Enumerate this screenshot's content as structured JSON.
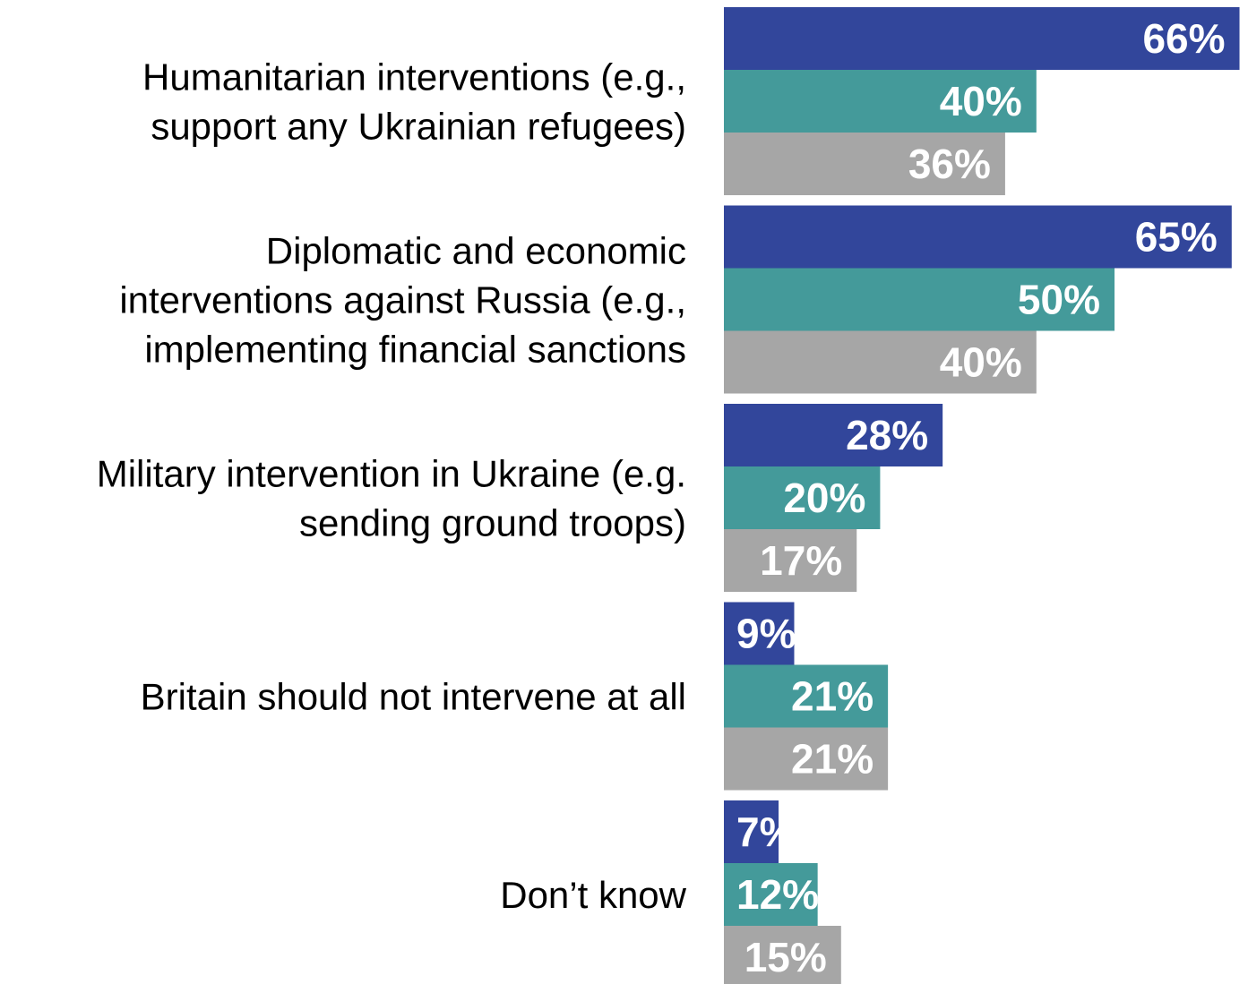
{
  "chart_data": {
    "type": "bar",
    "orientation": "horizontal",
    "categories": [
      [
        "Humanitarian interventions (e.g.,",
        "support any Ukrainian refugees)"
      ],
      [
        "Diplomatic and economic",
        "interventions against Russia (e.g.,",
        "implementing financial sanctions"
      ],
      [
        "Military intervention in Ukraine (e.g.",
        "sending ground troops)"
      ],
      [
        "Britain should not intervene at all"
      ],
      [
        "Don’t know"
      ]
    ],
    "series": [
      {
        "color": "#32469b",
        "values": [
          66,
          65,
          28,
          9,
          7
        ],
        "labels": [
          "66%",
          "65%",
          "28%",
          "9%",
          "7%"
        ]
      },
      {
        "color": "#449a9a",
        "values": [
          40,
          50,
          20,
          21,
          12
        ],
        "labels": [
          "40%",
          "50%",
          "20%",
          "21%",
          "12%"
        ]
      },
      {
        "color": "#a6a6a6",
        "values": [
          36,
          40,
          17,
          21,
          15
        ],
        "labels": [
          "36%",
          "40%",
          "17%",
          "21%",
          "15%"
        ]
      }
    ],
    "value_format": "percent",
    "grid": false,
    "legend": "none"
  }
}
